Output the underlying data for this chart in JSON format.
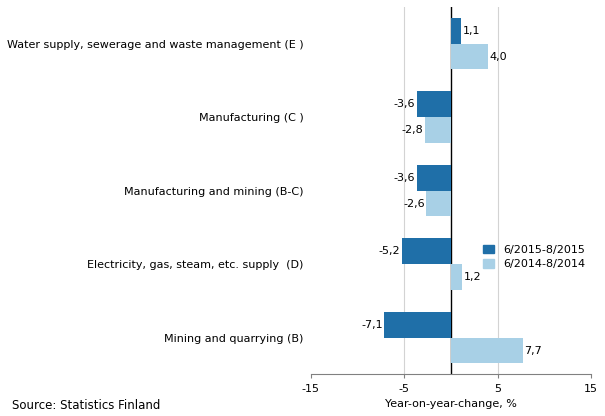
{
  "categories": [
    "Water supply, sewerage and waste management (E )",
    "Manufacturing (C )",
    "Manufacturing and mining (B-C)",
    "Electricity, gas, steam, etc. supply  (D)",
    "Mining and quarrying (B)"
  ],
  "series_2015": [
    1.1,
    -3.6,
    -3.6,
    -5.2,
    -7.1
  ],
  "series_2014": [
    4.0,
    -2.8,
    -2.6,
    1.2,
    7.7
  ],
  "color_2015": "#1F6FA8",
  "color_2014": "#A8D0E6",
  "legend_2015": "6/2015-8/2015",
  "legend_2014": "6/2014-8/2014",
  "xlabel": "Year-on-year-change, %",
  "xlim": [
    -15,
    15
  ],
  "xticks": [
    -15,
    -5,
    5,
    15
  ],
  "source": "Source: Statistics Finland",
  "bar_height": 0.35,
  "label_fontsize": 8.0,
  "tick_fontsize": 8.0,
  "source_fontsize": 8.5,
  "legend_fontsize": 8.0
}
